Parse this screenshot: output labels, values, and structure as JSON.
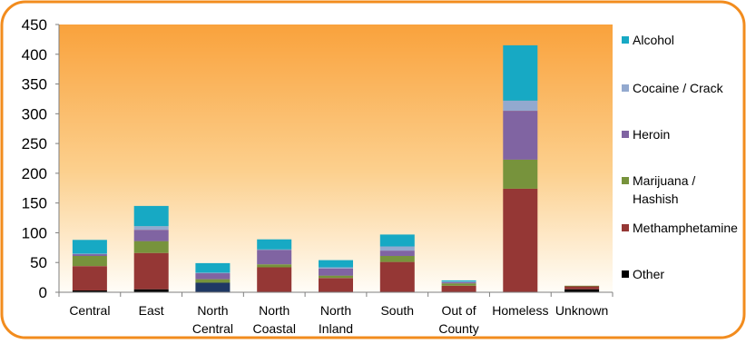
{
  "chart_data": {
    "type": "bar",
    "stacked": true,
    "title": "",
    "xlabel": "",
    "ylabel": "",
    "ylim": [
      0,
      450
    ],
    "yticks": [
      0,
      50,
      100,
      150,
      200,
      250,
      300,
      350,
      400,
      450
    ],
    "grid": false,
    "legend_position": "right",
    "background": "orange-gradient",
    "categories": [
      [
        "Central"
      ],
      [
        "East"
      ],
      [
        "North",
        "Central"
      ],
      [
        "North",
        "Coastal"
      ],
      [
        "North",
        "Inland"
      ],
      [
        "South"
      ],
      [
        "Out of",
        "County"
      ],
      [
        "Homeless"
      ],
      [
        "Unknown"
      ]
    ],
    "series": [
      {
        "name": "Other",
        "color": "#000000",
        "values": [
          3,
          5,
          0,
          0,
          0,
          0,
          0,
          0,
          5
        ]
      },
      {
        "name": "Methamphetamine",
        "color": "#953735",
        "values": [
          41,
          61,
          0,
          42,
          24,
          51,
          11,
          174,
          5
        ]
      },
      {
        "name": "North Central base",
        "legend": false,
        "color": "#1f3864",
        "values": [
          0,
          0,
          16,
          0,
          0,
          0,
          0,
          0,
          0
        ]
      },
      {
        "name": "Marijuana / Hashish",
        "color": "#77933c",
        "values": [
          17,
          20,
          6,
          5,
          4,
          10,
          4,
          49,
          1
        ]
      },
      {
        "name": "Heroin",
        "color": "#8064a2",
        "values": [
          3,
          19,
          10,
          24,
          12,
          9,
          2,
          82,
          0
        ]
      },
      {
        "name": "Cocaine / Crack",
        "color": "#93a9cf",
        "values": [
          1,
          6,
          1,
          1,
          2,
          7,
          1,
          17,
          0
        ]
      },
      {
        "name": "Alcohol",
        "color": "#17a9c4",
        "values": [
          23,
          34,
          16,
          17,
          12,
          20,
          2,
          93,
          0
        ]
      }
    ],
    "legend": [
      {
        "label": "Alcohol",
        "color": "#17a9c4"
      },
      {
        "label": "Cocaine / Crack",
        "color": "#93a9cf"
      },
      {
        "label": "Heroin",
        "color": "#8064a2"
      },
      {
        "label": [
          "Marijuana /",
          "Hashish"
        ],
        "color": "#77933c"
      },
      {
        "label": "Methamphetamine",
        "color": "#953735"
      },
      {
        "label": "Other",
        "color": "#000000"
      }
    ]
  }
}
